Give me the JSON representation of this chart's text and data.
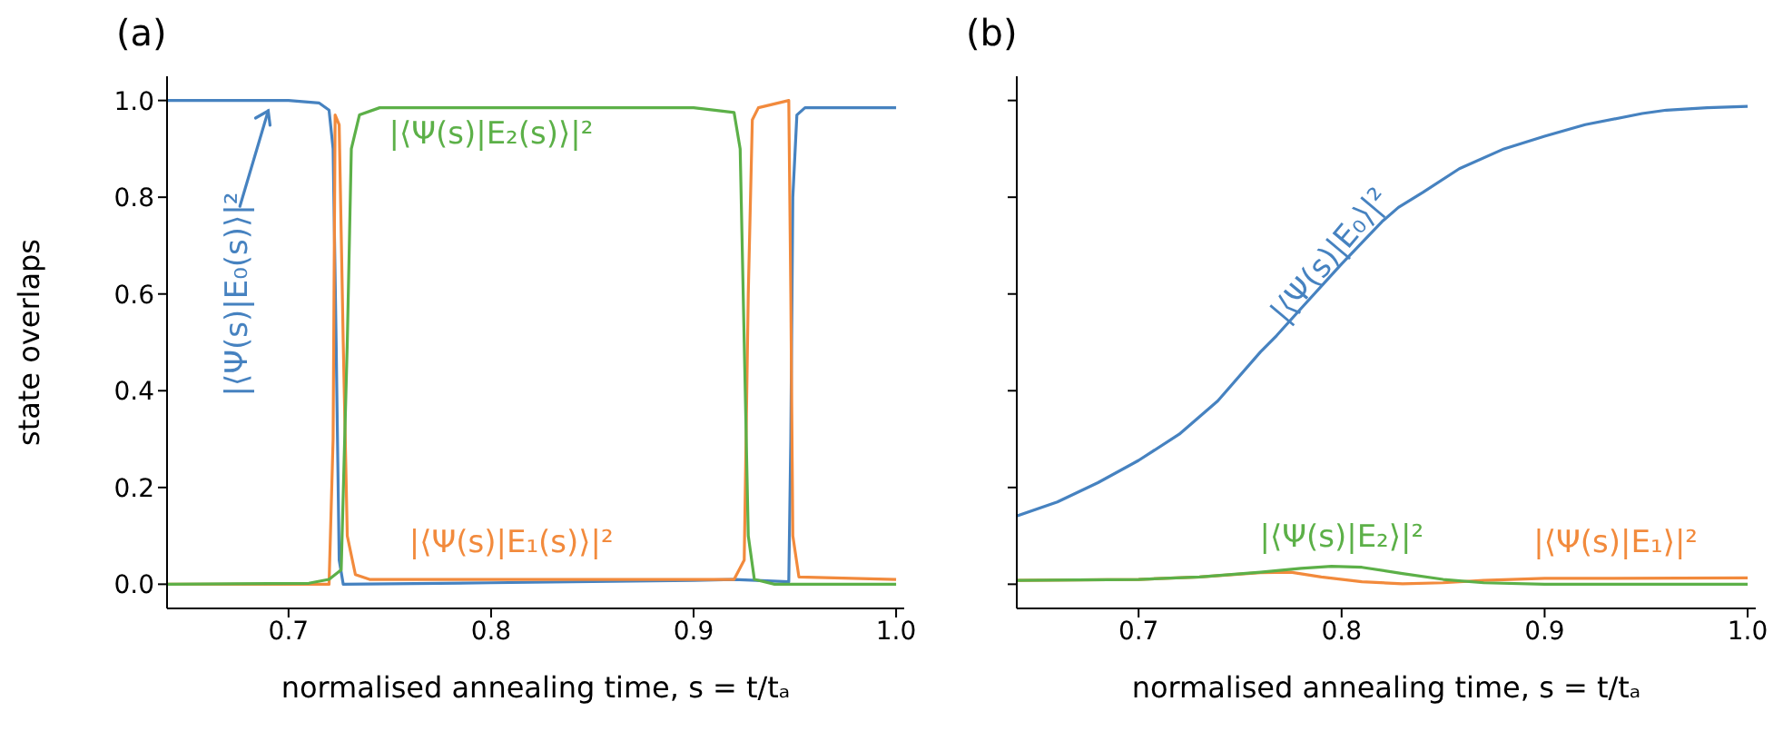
{
  "chart_data": [
    {
      "type": "line",
      "title": "(a)",
      "xlabel": "normalised annealing time, s = t/tₐ",
      "ylabel": "state overlaps",
      "xlim": [
        0.64,
        1.004
      ],
      "ylim": [
        -0.05,
        1.05
      ],
      "xticks": [
        {
          "value": 0.7,
          "label": "0.7"
        },
        {
          "value": 0.8,
          "label": "0.8"
        },
        {
          "value": 0.9,
          "label": "0.9"
        },
        {
          "value": 1.0,
          "label": "1.0"
        }
      ],
      "yticks": [
        {
          "value": 0,
          "label": "0.0"
        },
        {
          "value": 0.2,
          "label": "0.2"
        },
        {
          "value": 0.4,
          "label": "0.4"
        },
        {
          "value": 0.6,
          "label": "0.6"
        },
        {
          "value": 0.8,
          "label": "0.8"
        },
        {
          "value": 1.0,
          "label": "1.0"
        }
      ],
      "series": [
        {
          "name": "|⟨Ψ(s)|E₀(s)⟩|²",
          "color": "#4682c0",
          "x": [
            0.64,
            0.7,
            0.715,
            0.72,
            0.722,
            0.7235,
            0.725,
            0.727,
            0.8,
            0.9,
            0.92,
            0.947,
            0.948,
            0.949,
            0.951,
            0.955,
            1.0
          ],
          "values": [
            1.0,
            1.0,
            0.995,
            0.98,
            0.9,
            0.5,
            0.05,
            0.0,
            0.003,
            0.008,
            0.01,
            0.005,
            0.3,
            0.8,
            0.97,
            0.985,
            0.985
          ]
        },
        {
          "name": "|⟨Ψ(s)|E₁(s)⟩|²",
          "color": "#f28a3c",
          "x": [
            0.64,
            0.72,
            0.722,
            0.723,
            0.725,
            0.727,
            0.729,
            0.733,
            0.74,
            0.8,
            0.92,
            0.925,
            0.927,
            0.929,
            0.932,
            0.947,
            0.948,
            0.949,
            0.952,
            1.0
          ],
          "values": [
            0.0,
            0.0,
            0.3,
            0.97,
            0.95,
            0.5,
            0.1,
            0.02,
            0.01,
            0.01,
            0.01,
            0.05,
            0.6,
            0.96,
            0.985,
            1.0,
            0.6,
            0.1,
            0.015,
            0.01
          ]
        },
        {
          "name": "|⟨Ψ(s)|E₂(s)⟩|²",
          "color": "#5cb048",
          "x": [
            0.64,
            0.71,
            0.72,
            0.726,
            0.729,
            0.731,
            0.735,
            0.745,
            0.8,
            0.9,
            0.92,
            0.923,
            0.925,
            0.927,
            0.93,
            0.94,
            1.0
          ],
          "values": [
            0.0,
            0.002,
            0.01,
            0.03,
            0.5,
            0.9,
            0.97,
            0.985,
            0.985,
            0.985,
            0.975,
            0.9,
            0.5,
            0.1,
            0.01,
            0.0,
            0.0
          ]
        }
      ]
    },
    {
      "type": "line",
      "title": "(b)",
      "xlabel": "normalised annealing time, s = t/tₐ",
      "xlim": [
        0.64,
        1.004
      ],
      "ylim": [
        -0.05,
        1.05
      ],
      "tick_labels": "x",
      "xticks": [
        {
          "value": 0.7,
          "label": "0.7"
        },
        {
          "value": 0.8,
          "label": "0.8"
        },
        {
          "value": 0.9,
          "label": "0.9"
        },
        {
          "value": 1.0,
          "label": "1.0"
        }
      ],
      "yticks": [
        {
          "value": 0,
          "label": null
        },
        {
          "value": 0.2,
          "label": null
        },
        {
          "value": 0.4,
          "label": null
        },
        {
          "value": 0.6,
          "label": null
        },
        {
          "value": 0.8,
          "label": null
        },
        {
          "value": 1.0,
          "label": null
        }
      ],
      "series": [
        {
          "name": "|⟨Ψ(s)|E₀⟩|²",
          "color": "#4682c0",
          "x": [
            0.64,
            0.66,
            0.68,
            0.7,
            0.72,
            0.739,
            0.76,
            0.768,
            0.78,
            0.8,
            0.82,
            0.828,
            0.84,
            0.858,
            0.88,
            0.9,
            0.92,
            0.948,
            0.96,
            0.98,
            1.0
          ],
          "values": [
            0.141,
            0.17,
            0.21,
            0.256,
            0.31,
            0.379,
            0.48,
            0.514,
            0.57,
            0.662,
            0.75,
            0.779,
            0.81,
            0.859,
            0.9,
            0.926,
            0.95,
            0.973,
            0.98,
            0.985,
            0.988
          ]
        },
        {
          "name": "|⟨Ψ(s)|E₁⟩|²",
          "color": "#f28a3c",
          "x": [
            0.64,
            0.7,
            0.73,
            0.76,
            0.775,
            0.79,
            0.81,
            0.83,
            0.85,
            0.87,
            0.9,
            1.0
          ],
          "values": [
            0.008,
            0.01,
            0.015,
            0.024,
            0.025,
            0.015,
            0.005,
            0.001,
            0.003,
            0.008,
            0.012,
            0.013
          ]
        },
        {
          "name": "|⟨Ψ(s)|E₂⟩|²",
          "color": "#5cb048",
          "x": [
            0.64,
            0.7,
            0.73,
            0.76,
            0.78,
            0.795,
            0.81,
            0.83,
            0.85,
            0.87,
            0.9,
            1.0
          ],
          "values": [
            0.008,
            0.01,
            0.015,
            0.025,
            0.033,
            0.037,
            0.035,
            0.022,
            0.01,
            0.003,
            0.0,
            0.0
          ]
        }
      ]
    }
  ]
}
